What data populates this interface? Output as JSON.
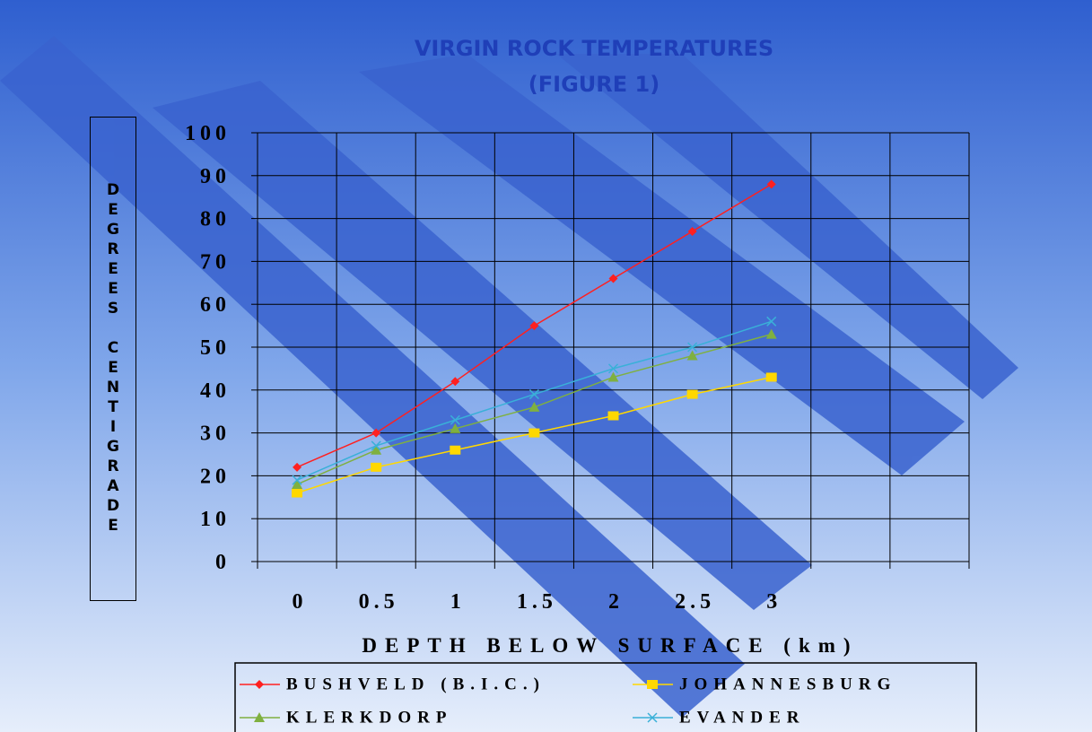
{
  "chart_data": {
    "type": "line",
    "title": "VIRGIN ROCK TEMPERATURES",
    "subtitle": "(FIGURE 1)",
    "x_label": "DEPTH BELOW SURFACE (km)",
    "y_label": "DEGREES CENTIGRADE",
    "categories": [
      "0",
      "0.5",
      "1",
      "1.5",
      "2",
      "2.5",
      "3",
      null,
      null
    ],
    "series": [
      {
        "name": "BUSHVELD (B.I.C.)",
        "color": "#ff2020",
        "marker": "diamond",
        "values": [
          22,
          30,
          42,
          55,
          66,
          77,
          88,
          null,
          null
        ]
      },
      {
        "name": "JOHANNESBURG",
        "color": "#ffd800",
        "marker": "square",
        "values": [
          16,
          22,
          26,
          30,
          34,
          39,
          43,
          null,
          null
        ]
      },
      {
        "name": "KLERKDORP",
        "color": "#7fb040",
        "marker": "triangle",
        "values": [
          18,
          26,
          31,
          36,
          43,
          48,
          53,
          null,
          null
        ]
      },
      {
        "name": "EVANDER",
        "color": "#3ab0d8",
        "marker": "x",
        "values": [
          19,
          27,
          33,
          39,
          45,
          50,
          56,
          null,
          null
        ]
      }
    ],
    "ylim": [
      0,
      100
    ],
    "yticks": [
      0,
      10,
      20,
      30,
      40,
      50,
      60,
      70,
      80,
      90,
      100
    ],
    "grid": true
  }
}
